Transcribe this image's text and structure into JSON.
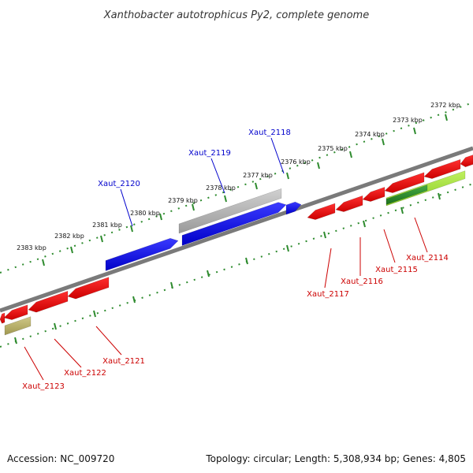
{
  "title": "Xanthobacter autotrophicus Py2, complete genome",
  "accession_text": "Accession: NC_009720",
  "summary_text": "Topology: circular; Length: 5,308,934 bp; Genes: 4,805",
  "colors": {
    "backbone": "#7a7a7a",
    "tick": "#2e8b2e",
    "forward_gene": "#0000ee",
    "reverse_gene": "#ee0000",
    "forward_label": "#0000cc",
    "reverse_label": "#cc0000",
    "gray_feature": "#b0b0b0",
    "olive_feature": "#b8b070",
    "lime_feature": "#99dd33",
    "dark_green_feature": "#2a8a2a"
  },
  "tick_labels": [
    "2383 kbp",
    "2382 kbp",
    "2381 kbp",
    "2380 kbp",
    "2379 kbp",
    "2378 kbp",
    "2377 kbp",
    "2376 kbp",
    "2375 kbp",
    "2374 kbp",
    "2373 kbp",
    "2372 kbp"
  ],
  "forward_genes": [
    "Xaut_2120",
    "Xaut_2119",
    "Xaut_2118"
  ],
  "reverse_genes": [
    "Xaut_2123",
    "Xaut_2122",
    "Xaut_2121",
    "Xaut_2117",
    "Xaut_2116",
    "Xaut_2115",
    "Xaut_2114"
  ]
}
